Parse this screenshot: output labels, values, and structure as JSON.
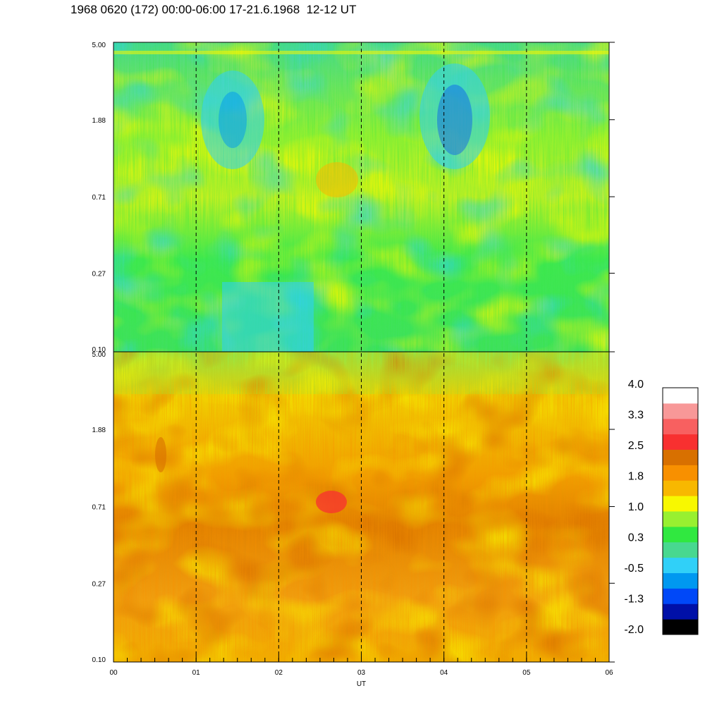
{
  "title": "1968 0620 (172) 00:00-06:00 17-21.6.1968  12-12 UT",
  "chart_data": {
    "type": "heatmap",
    "xlabel": "UT",
    "x_ticks": [
      "00",
      "01",
      "02",
      "03",
      "04",
      "05",
      "06"
    ],
    "xlim": [
      0,
      6
    ],
    "dashed_lines_at": [
      1,
      2,
      3,
      4,
      5
    ],
    "panels": [
      {
        "name": "upper",
        "y_ticks": [
          "5.00",
          "1.88",
          "0.71",
          "0.27",
          "0.10"
        ],
        "ylim": [
          0.1,
          5.0
        ],
        "y_scale": "log",
        "dominant_level_range": [
          -0.5,
          1.4
        ]
      },
      {
        "name": "lower",
        "y_ticks": [
          "5.00",
          "1.88",
          "0.71",
          "0.27",
          "0.10"
        ],
        "ylim": [
          0.1,
          5.0
        ],
        "y_scale": "log",
        "dominant_level_range": [
          1.0,
          2.6
        ]
      }
    ],
    "colorbar": {
      "labels": [
        "4.0",
        "3.3",
        "2.5",
        "1.8",
        "1.0",
        "0.3",
        "-0.5",
        "-1.3",
        "-2.0"
      ],
      "range": [
        -2.0,
        4.0
      ],
      "colors": [
        "#000000",
        "#0010a8",
        "#0048f8",
        "#0098f0",
        "#30d0f8",
        "#48d890",
        "#30e840",
        "#98f030",
        "#f8f800",
        "#f8b800",
        "#f89000",
        "#d87000",
        "#f83030",
        "#f86060",
        "#f89898",
        "#ffffff"
      ]
    }
  }
}
